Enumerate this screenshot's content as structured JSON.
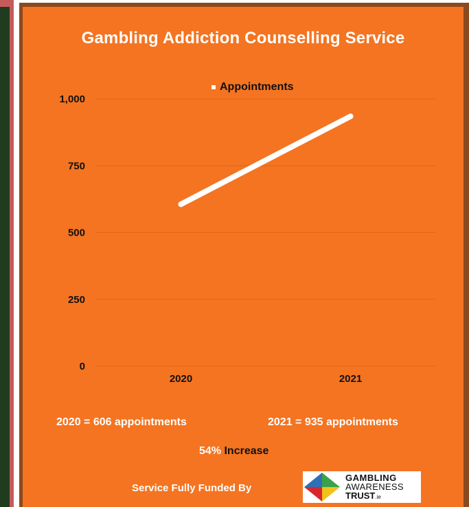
{
  "chart_data": {
    "type": "line",
    "title": "Gambling Addiction Counselling Service",
    "categories": [
      "2020",
      "2021"
    ],
    "series": [
      {
        "name": "Appointments",
        "values": [
          606,
          935
        ]
      }
    ],
    "ylim": [
      0,
      1000
    ],
    "yticks": [
      0,
      250,
      500,
      750,
      1000
    ],
    "ytick_labels": [
      "0",
      "250",
      "500",
      "750",
      "1,000"
    ],
    "xlabel": "",
    "ylabel": "",
    "grid": true,
    "legend": "top-center"
  },
  "colors": {
    "background": "#f47421",
    "line": "#ffffff",
    "gridline": "#e0651a"
  },
  "summary": {
    "year_a": "2020 = 606 appointments",
    "year_b": "2021 = 935 appointments",
    "increase_pct": "54%",
    "increase_label": " Increase"
  },
  "footer": {
    "funded_text": "Service Fully Funded By",
    "logo_line1": "GAMBLING",
    "logo_line2": "AWARENESS",
    "logo_line3": "TRUST",
    "logo_suffix": ".ie"
  }
}
